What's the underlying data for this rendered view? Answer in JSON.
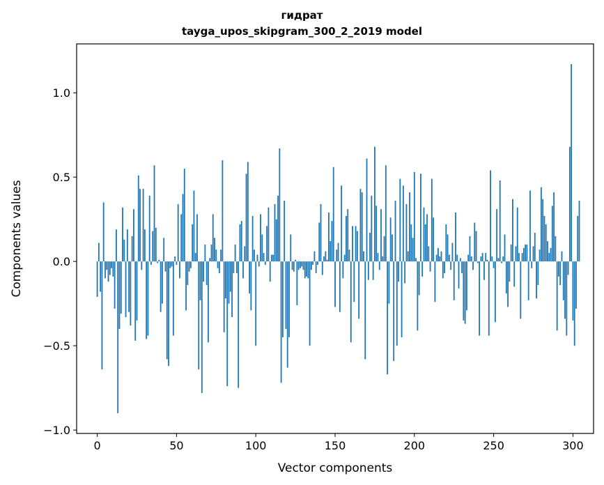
{
  "chart_data": {
    "type": "bar",
    "title": "гидрат",
    "subtitle": "tayga_upos_skipgram_300_2_2019 model",
    "xlabel": "Vector components",
    "ylabel": "Components values",
    "xlim": [
      -13,
      313
    ],
    "ylim": [
      -1.02,
      1.29
    ],
    "xticks": [
      0,
      50,
      100,
      150,
      200,
      250,
      300
    ],
    "yticks": [
      -1.0,
      -0.5,
      0.0,
      0.5,
      1.0
    ],
    "ytick_labels": [
      "−1.0",
      "−0.5",
      "0.0",
      "0.5",
      "1.0"
    ],
    "bar_color": "#1f77b4",
    "grid": false,
    "values": [
      -0.21,
      0.11,
      -0.18,
      -0.64,
      0.35,
      -0.1,
      -0.05,
      -0.12,
      -0.08,
      -0.04,
      -0.09,
      -0.28,
      0.19,
      -0.9,
      -0.4,
      -0.31,
      0.32,
      0.13,
      -0.33,
      0.19,
      -0.3,
      -0.38,
      0.15,
      0.31,
      -0.47,
      -0.35,
      0.51,
      0.43,
      -0.05,
      0.43,
      0.19,
      -0.46,
      -0.44,
      0.39,
      -0.02,
      0.18,
      0.57,
      0.2,
      -0.01,
      0.01,
      -0.3,
      -0.25,
      0.14,
      -0.06,
      -0.58,
      -0.62,
      -0.04,
      -0.03,
      -0.44,
      0.03,
      -0.02,
      0.34,
      -0.1,
      0.28,
      0.4,
      0.55,
      -0.29,
      -0.14,
      -0.06,
      -0.04,
      0.22,
      0.42,
      0.05,
      0.28,
      -0.64,
      -0.23,
      -0.78,
      -0.12,
      0.1,
      -0.14,
      -0.48,
      0.02,
      0.1,
      0.28,
      0.14,
      0.07,
      -0.04,
      -0.07,
      0.07,
      0.6,
      -0.42,
      -0.22,
      -0.74,
      -0.25,
      -0.18,
      -0.33,
      -0.07,
      0.1,
      -0.07,
      -0.75,
      0.22,
      0.24,
      -0.1,
      0.09,
      0.52,
      0.59,
      -0.19,
      -0.29,
      0.27,
      0.07,
      -0.5,
      0.04,
      -0.03,
      0.28,
      0.16,
      0.05,
      -0.02,
      0.21,
      0.32,
      -0.12,
      0.04,
      0.04,
      0.34,
      0.25,
      0.39,
      0.67,
      -0.72,
      -0.45,
      0.36,
      -0.4,
      -0.63,
      -0.45,
      0.16,
      -0.05,
      -0.06,
      0.01,
      -0.26,
      -0.05,
      -0.04,
      -0.03,
      -0.05,
      -0.1,
      -0.09,
      -0.1,
      -0.5,
      -0.05,
      -0.02,
      0.06,
      -0.07,
      -0.02,
      0.23,
      0.34,
      -0.08,
      0.03,
      0.06,
      0.01,
      0.29,
      0.12,
      0.24,
      0.56,
      -0.27,
      0.07,
      0.11,
      -0.3,
      0.45,
      -0.1,
      0.04,
      0.27,
      0.31,
      0.07,
      -0.48,
      0.21,
      -0.24,
      0.21,
      0.18,
      -0.34,
      0.43,
      0.41,
      0.06,
      -0.58,
      0.61,
      -0.11,
      0.17,
      0.39,
      -0.11,
      0.68,
      0.33,
      0.05,
      -0.05,
      0.31,
      0.03,
      0.15,
      0.57,
      -0.67,
      -0.25,
      0.26,
      0.16,
      -0.59,
      0.36,
      -0.5,
      -0.12,
      0.49,
      -0.45,
      0.45,
      -0.13,
      0.34,
      0.06,
      0.41,
      0.22,
      0.14,
      0.53,
      0.02,
      -0.41,
      -0.2,
      0.52,
      -0.09,
      0.32,
      0.22,
      0.28,
      0.09,
      -0.06,
      0.49,
      0.26,
      -0.24,
      0.04,
      0.08,
      0.03,
      0.06,
      -0.1,
      -0.07,
      0.22,
      0.16,
      0.04,
      -0.05,
      0.11,
      -0.23,
      0.29,
      0.04,
      -0.16,
      0.02,
      -0.07,
      -0.35,
      -0.37,
      -0.29,
      0.04,
      0.15,
      0.03,
      -0.05,
      0.23,
      0.18,
      -0.01,
      -0.44,
      0.03,
      0.05,
      -0.11,
      0.05,
      0.01,
      -0.44,
      0.54,
      0.03,
      -0.04,
      -0.36,
      0.31,
      0.02,
      0.48,
      -0.01,
      0.03,
      0.16,
      -0.19,
      -0.27,
      -0.12,
      0.1,
      0.37,
      -0.15,
      0.09,
      0.32,
      0.05,
      -0.34,
      0.05,
      0.08,
      0.1,
      0.1,
      -0.23,
      0.42,
      -0.04,
      0.09,
      0.17,
      -0.22,
      -0.14,
      0.07,
      0.44,
      0.37,
      0.27,
      0.22,
      0.12,
      0.05,
      0.08,
      0.33,
      0.41,
      0.15,
      -0.41,
      -0.09,
      -0.14,
      0.06,
      -0.23,
      -0.34,
      -0.44,
      -0.08,
      0.68,
      1.17,
      -0.35,
      -0.5,
      -0.28,
      0.27,
      0.36
    ]
  }
}
